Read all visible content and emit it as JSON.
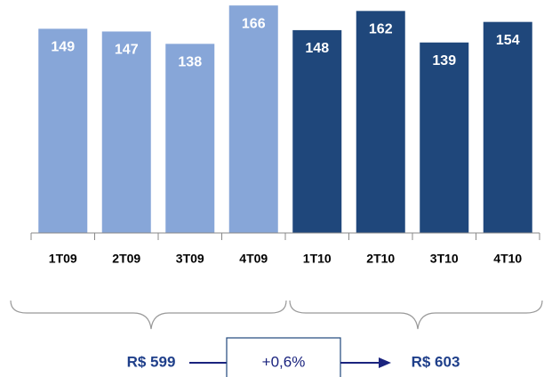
{
  "chart_data": {
    "type": "bar",
    "categories": [
      "1T09",
      "2T09",
      "3T09",
      "4T09",
      "1T10",
      "2T10",
      "3T10",
      "4T10"
    ],
    "values": [
      149,
      147,
      138,
      166,
      148,
      162,
      139,
      154
    ],
    "colors": [
      "#87a6d8",
      "#87a6d8",
      "#87a6d8",
      "#87a6d8",
      "#1f477b",
      "#1f477b",
      "#1f477b",
      "#1f477b"
    ],
    "ylim": [
      0,
      170
    ],
    "annotations": {
      "left_total": "R$ 599",
      "change": "+0,6%",
      "right_total": "R$ 603"
    }
  }
}
